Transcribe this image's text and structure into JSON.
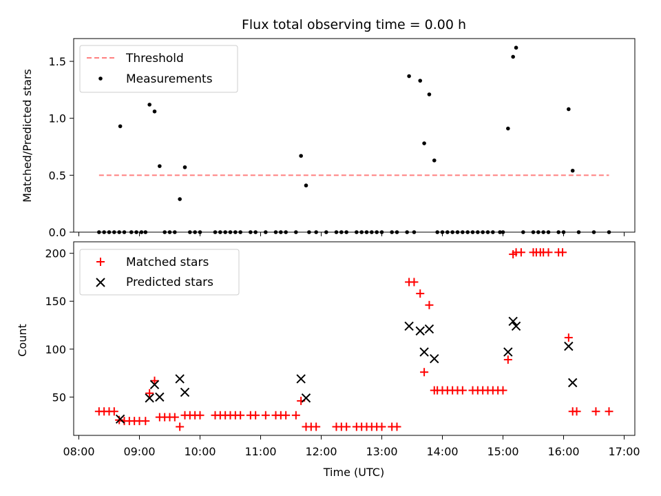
{
  "figure": {
    "title": "Flux total observing time = 0.00 h"
  },
  "chart_data": [
    {
      "type": "scatter",
      "ylabel": "Matched/Predicted stars",
      "xlim": [
        "08:00",
        "17:00"
      ],
      "ylim": [
        0,
        1.7
      ],
      "yticks": [
        "0.0",
        "0.5",
        "1.0",
        "1.5"
      ],
      "legend": {
        "placement": "upper-left",
        "entries": [
          "Threshold",
          "Measurements"
        ]
      },
      "threshold": {
        "name": "Threshold",
        "value": 0.5,
        "x_range": [
          "08:20",
          "16:45"
        ],
        "color": "#ff7f7f"
      },
      "series": [
        {
          "name": "Measurements",
          "color": "#000000",
          "points": [
            [
              "08:20",
              0
            ],
            [
              "08:25",
              0
            ],
            [
              "08:30",
              0
            ],
            [
              "08:35",
              0
            ],
            [
              "08:40",
              0
            ],
            [
              "08:41",
              0.93
            ],
            [
              "08:45",
              0
            ],
            [
              "08:52",
              0
            ],
            [
              "08:57",
              0
            ],
            [
              "09:02",
              0
            ],
            [
              "09:06",
              0
            ],
            [
              "09:10",
              1.12
            ],
            [
              "09:15",
              1.06
            ],
            [
              "09:20",
              0.58
            ],
            [
              "09:25",
              0
            ],
            [
              "09:30",
              0
            ],
            [
              "09:35",
              0
            ],
            [
              "09:40",
              0.29
            ],
            [
              "09:45",
              0.57
            ],
            [
              "09:50",
              0
            ],
            [
              "09:55",
              0
            ],
            [
              "10:00",
              0
            ],
            [
              "10:15",
              0
            ],
            [
              "10:20",
              0
            ],
            [
              "10:25",
              0
            ],
            [
              "10:30",
              0
            ],
            [
              "10:35",
              0
            ],
            [
              "10:40",
              0
            ],
            [
              "10:50",
              0
            ],
            [
              "10:55",
              0
            ],
            [
              "11:05",
              0
            ],
            [
              "11:15",
              0
            ],
            [
              "11:20",
              0
            ],
            [
              "11:25",
              0
            ],
            [
              "11:35",
              0
            ],
            [
              "11:40",
              0.67
            ],
            [
              "11:45",
              0.41
            ],
            [
              "11:48",
              0
            ],
            [
              "11:55",
              0
            ],
            [
              "12:05",
              0
            ],
            [
              "12:15",
              0
            ],
            [
              "12:20",
              0
            ],
            [
              "12:25",
              0
            ],
            [
              "12:35",
              0
            ],
            [
              "12:40",
              0
            ],
            [
              "12:45",
              0
            ],
            [
              "12:50",
              0
            ],
            [
              "12:55",
              0
            ],
            [
              "13:00",
              0
            ],
            [
              "13:10",
              0
            ],
            [
              "13:15",
              0
            ],
            [
              "13:25",
              0
            ],
            [
              "13:27",
              1.37
            ],
            [
              "13:32",
              0
            ],
            [
              "13:38",
              1.33
            ],
            [
              "13:42",
              0.78
            ],
            [
              "13:47",
              1.21
            ],
            [
              "13:52",
              0.63
            ],
            [
              "13:55",
              0
            ],
            [
              "14:00",
              0
            ],
            [
              "14:05",
              0
            ],
            [
              "14:10",
              0
            ],
            [
              "14:15",
              0
            ],
            [
              "14:20",
              0
            ],
            [
              "14:25",
              0
            ],
            [
              "14:30",
              0
            ],
            [
              "14:35",
              0
            ],
            [
              "14:40",
              0
            ],
            [
              "14:45",
              0
            ],
            [
              "14:50",
              0
            ],
            [
              "14:57",
              0
            ],
            [
              "15:00",
              0
            ],
            [
              "15:05",
              0.91
            ],
            [
              "15:10",
              1.54
            ],
            [
              "15:13",
              1.62
            ],
            [
              "15:20",
              0
            ],
            [
              "15:30",
              0
            ],
            [
              "15:35",
              0
            ],
            [
              "15:40",
              0
            ],
            [
              "15:45",
              0
            ],
            [
              "15:55",
              0
            ],
            [
              "16:00",
              0
            ],
            [
              "16:05",
              1.08
            ],
            [
              "16:09",
              0.54
            ],
            [
              "16:15",
              0
            ],
            [
              "16:30",
              0
            ],
            [
              "16:45",
              0
            ]
          ]
        }
      ]
    },
    {
      "type": "scatter",
      "xlabel": "Time (UTC)",
      "ylabel": "Count",
      "xlim": [
        "08:00",
        "17:00"
      ],
      "ylim": [
        10,
        212
      ],
      "xticks": [
        "08:00",
        "09:00",
        "10:00",
        "11:00",
        "12:00",
        "13:00",
        "14:00",
        "15:00",
        "16:00",
        "17:00"
      ],
      "yticks": [
        "50",
        "100",
        "150",
        "200"
      ],
      "legend": {
        "placement": "upper-left",
        "entries": [
          "Matched stars",
          "Predicted stars"
        ]
      },
      "series": [
        {
          "name": "Matched stars",
          "marker": "+",
          "color": "#ff0000",
          "points": [
            [
              "08:20",
              35
            ],
            [
              "08:25",
              35
            ],
            [
              "08:30",
              35
            ],
            [
              "08:35",
              35
            ],
            [
              "08:40",
              26
            ],
            [
              "08:45",
              25
            ],
            [
              "08:50",
              25
            ],
            [
              "08:55",
              25
            ],
            [
              "09:00",
              25
            ],
            [
              "09:06",
              25
            ],
            [
              "09:10",
              54
            ],
            [
              "09:15",
              67
            ],
            [
              "09:20",
              29
            ],
            [
              "09:25",
              29
            ],
            [
              "09:30",
              29
            ],
            [
              "09:35",
              29
            ],
            [
              "09:40",
              19
            ],
            [
              "09:45",
              31
            ],
            [
              "09:50",
              31
            ],
            [
              "09:55",
              31
            ],
            [
              "10:00",
              31
            ],
            [
              "10:15",
              31
            ],
            [
              "10:20",
              31
            ],
            [
              "10:25",
              31
            ],
            [
              "10:30",
              31
            ],
            [
              "10:35",
              31
            ],
            [
              "10:40",
              31
            ],
            [
              "10:50",
              31
            ],
            [
              "10:55",
              31
            ],
            [
              "11:05",
              31
            ],
            [
              "11:15",
              31
            ],
            [
              "11:20",
              31
            ],
            [
              "11:25",
              31
            ],
            [
              "11:35",
              31
            ],
            [
              "11:40",
              46
            ],
            [
              "11:45",
              19
            ],
            [
              "11:50",
              19
            ],
            [
              "11:55",
              19
            ],
            [
              "12:15",
              19
            ],
            [
              "12:20",
              19
            ],
            [
              "12:25",
              19
            ],
            [
              "12:35",
              19
            ],
            [
              "12:40",
              19
            ],
            [
              "12:45",
              19
            ],
            [
              "12:50",
              19
            ],
            [
              "12:55",
              19
            ],
            [
              "13:00",
              19
            ],
            [
              "13:10",
              19
            ],
            [
              "13:15",
              19
            ],
            [
              "13:27",
              170
            ],
            [
              "13:32",
              170
            ],
            [
              "13:38",
              158
            ],
            [
              "13:42",
              76
            ],
            [
              "13:47",
              146
            ],
            [
              "13:52",
              57
            ],
            [
              "13:55",
              57
            ],
            [
              "14:00",
              57
            ],
            [
              "14:05",
              57
            ],
            [
              "14:10",
              57
            ],
            [
              "14:15",
              57
            ],
            [
              "14:20",
              57
            ],
            [
              "14:30",
              57
            ],
            [
              "14:35",
              57
            ],
            [
              "14:40",
              57
            ],
            [
              "14:45",
              57
            ],
            [
              "14:50",
              57
            ],
            [
              "14:55",
              57
            ],
            [
              "15:00",
              57
            ],
            [
              "15:05",
              89
            ],
            [
              "15:10",
              199
            ],
            [
              "15:13",
              201
            ],
            [
              "15:18",
              201
            ],
            [
              "15:30",
              201
            ],
            [
              "15:33",
              201
            ],
            [
              "15:37",
              201
            ],
            [
              "15:40",
              201
            ],
            [
              "15:45",
              201
            ],
            [
              "15:55",
              201
            ],
            [
              "15:59",
              201
            ],
            [
              "16:05",
              112
            ],
            [
              "16:09",
              35
            ],
            [
              "16:13",
              35
            ],
            [
              "16:32",
              35
            ],
            [
              "16:45",
              35
            ]
          ]
        },
        {
          "name": "Predicted stars",
          "marker": "x",
          "color": "#000000",
          "points": [
            [
              "08:41",
              27
            ],
            [
              "09:10",
              49
            ],
            [
              "09:15",
              63
            ],
            [
              "09:20",
              50
            ],
            [
              "09:40",
              69
            ],
            [
              "09:45",
              55
            ],
            [
              "11:40",
              69
            ],
            [
              "11:45",
              49
            ],
            [
              "13:27",
              124
            ],
            [
              "13:38",
              119
            ],
            [
              "13:42",
              97
            ],
            [
              "13:47",
              121
            ],
            [
              "13:52",
              90
            ],
            [
              "15:05",
              97
            ],
            [
              "15:10",
              129
            ],
            [
              "15:13",
              124
            ],
            [
              "16:05",
              103
            ],
            [
              "16:09",
              65
            ]
          ]
        }
      ]
    }
  ]
}
